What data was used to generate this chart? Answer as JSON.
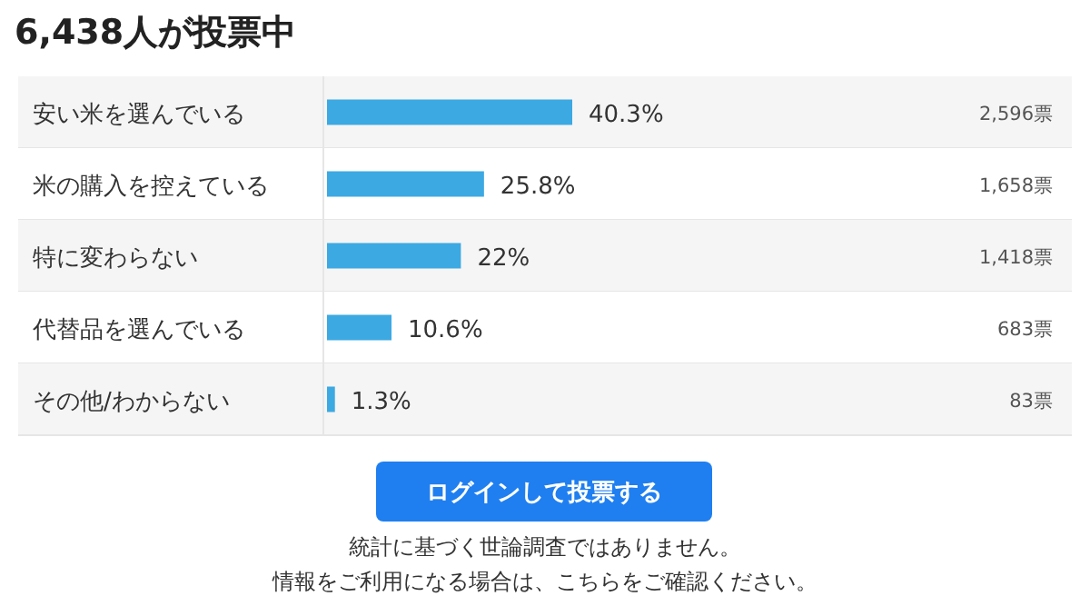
{
  "chart_data": {
    "type": "bar",
    "orientation": "horizontal",
    "title": "6,438人が投票中",
    "categories": [
      "安い米を選んでいる",
      "米の購入を控えている",
      "特に変わらない",
      "代替品を選んでいる",
      "その他/わからない"
    ],
    "values": [
      40.3,
      25.8,
      22,
      10.6,
      1.3
    ],
    "color": "#3ca9e2",
    "value_labels": [
      "40.3%",
      "25.8%",
      "22%",
      "10.6%",
      "1.3%"
    ],
    "annotations": [
      "2,596票",
      "1,658票",
      "1,418票",
      "683票",
      "83票",
      "ログインして投票する",
      "統計に基づく世論調査ではありません。",
      "情報をご利用になる場合は、こちらをご確認ください。"
    ]
  }
}
